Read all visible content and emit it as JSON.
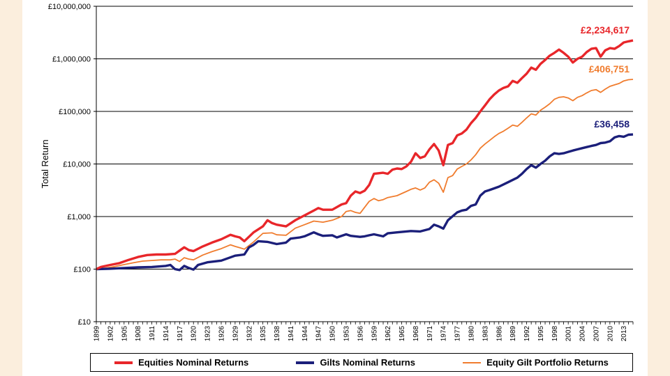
{
  "chart_data": {
    "type": "line",
    "ylabel": "Total Return",
    "xlabel": "",
    "yscale": "log",
    "ylim": [
      10,
      10000000
    ],
    "xlim": [
      1899,
      2015
    ],
    "yticks": [
      {
        "value": 10,
        "label": "£10"
      },
      {
        "value": 100,
        "label": "£100"
      },
      {
        "value": 1000,
        "label": "£1,000"
      },
      {
        "value": 10000,
        "label": "£10,000"
      },
      {
        "value": 100000,
        "label": "£100,000"
      },
      {
        "value": 1000000,
        "label": "£1,000,000"
      },
      {
        "value": 10000000,
        "label": "£10,000,000"
      }
    ],
    "xticks": [
      "1899",
      "1902",
      "1905",
      "1908",
      "1911",
      "1914",
      "1917",
      "1920",
      "1923",
      "1926",
      "1929",
      "1932",
      "1935",
      "1938",
      "1941",
      "1944",
      "1947",
      "1950",
      "1953",
      "1956",
      "1959",
      "1962",
      "1965",
      "1968",
      "1971",
      "1974",
      "1977",
      "1980",
      "1983",
      "1986",
      "1989",
      "1992",
      "1995",
      "1998",
      "2001",
      "2004",
      "2007",
      "2010",
      "2013"
    ],
    "grid": "horizontal",
    "legend_position": "bottom",
    "series": [
      {
        "name": "Equities Nominal Returns",
        "color": "#e8262a",
        "end_label": "£2,234,617",
        "points": [
          [
            1899,
            100
          ],
          [
            1900,
            110
          ],
          [
            1902,
            120
          ],
          [
            1904,
            130
          ],
          [
            1906,
            150
          ],
          [
            1908,
            170
          ],
          [
            1910,
            185
          ],
          [
            1912,
            190
          ],
          [
            1914,
            190
          ],
          [
            1916,
            195
          ],
          [
            1918,
            260
          ],
          [
            1919,
            230
          ],
          [
            1920,
            220
          ],
          [
            1922,
            270
          ],
          [
            1924,
            320
          ],
          [
            1926,
            370
          ],
          [
            1928,
            450
          ],
          [
            1929,
            420
          ],
          [
            1930,
            400
          ],
          [
            1931,
            340
          ],
          [
            1933,
            500
          ],
          [
            1935,
            650
          ],
          [
            1936,
            850
          ],
          [
            1937,
            750
          ],
          [
            1938,
            700
          ],
          [
            1940,
            650
          ],
          [
            1942,
            850
          ],
          [
            1944,
            1050
          ],
          [
            1946,
            1300
          ],
          [
            1947,
            1450
          ],
          [
            1948,
            1350
          ],
          [
            1950,
            1350
          ],
          [
            1952,
            1700
          ],
          [
            1953,
            1800
          ],
          [
            1954,
            2500
          ],
          [
            1955,
            3000
          ],
          [
            1956,
            2800
          ],
          [
            1957,
            3100
          ],
          [
            1958,
            4000
          ],
          [
            1959,
            6500
          ],
          [
            1961,
            6800
          ],
          [
            1962,
            6500
          ],
          [
            1963,
            7800
          ],
          [
            1964,
            8200
          ],
          [
            1965,
            8000
          ],
          [
            1966,
            9000
          ],
          [
            1967,
            11000
          ],
          [
            1968,
            16000
          ],
          [
            1969,
            13000
          ],
          [
            1970,
            14000
          ],
          [
            1971,
            19000
          ],
          [
            1972,
            24000
          ],
          [
            1973,
            18000
          ],
          [
            1974,
            9500
          ],
          [
            1975,
            23000
          ],
          [
            1976,
            25000
          ],
          [
            1977,
            35000
          ],
          [
            1978,
            38000
          ],
          [
            1979,
            45000
          ],
          [
            1980,
            60000
          ],
          [
            1981,
            75000
          ],
          [
            1982,
            100000
          ],
          [
            1983,
            130000
          ],
          [
            1984,
            170000
          ],
          [
            1985,
            210000
          ],
          [
            1986,
            250000
          ],
          [
            1987,
            280000
          ],
          [
            1988,
            300000
          ],
          [
            1989,
            380000
          ],
          [
            1990,
            350000
          ],
          [
            1991,
            430000
          ],
          [
            1992,
            520000
          ],
          [
            1993,
            680000
          ],
          [
            1994,
            620000
          ],
          [
            1995,
            800000
          ],
          [
            1996,
            950000
          ],
          [
            1997,
            1150000
          ],
          [
            1998,
            1300000
          ],
          [
            1999,
            1500000
          ],
          [
            2000,
            1300000
          ],
          [
            2001,
            1100000
          ],
          [
            2002,
            850000
          ],
          [
            2003,
            1000000
          ],
          [
            2004,
            1100000
          ],
          [
            2005,
            1350000
          ],
          [
            2006,
            1550000
          ],
          [
            2007,
            1600000
          ],
          [
            2008,
            1100000
          ],
          [
            2009,
            1450000
          ],
          [
            2010,
            1600000
          ],
          [
            2011,
            1550000
          ],
          [
            2012,
            1750000
          ],
          [
            2013,
            2050000
          ],
          [
            2014,
            2150000
          ],
          [
            2015,
            2234617
          ]
        ]
      },
      {
        "name": "Gilts Nominal Returns",
        "color": "#1b1f7a",
        "end_label": "£36,458",
        "points": [
          [
            1899,
            100
          ],
          [
            1902,
            102
          ],
          [
            1905,
            105
          ],
          [
            1908,
            108
          ],
          [
            1911,
            110
          ],
          [
            1914,
            115
          ],
          [
            1915,
            120
          ],
          [
            1916,
            100
          ],
          [
            1917,
            96
          ],
          [
            1918,
            115
          ],
          [
            1919,
            105
          ],
          [
            1920,
            98
          ],
          [
            1921,
            120
          ],
          [
            1923,
            135
          ],
          [
            1926,
            145
          ],
          [
            1929,
            180
          ],
          [
            1931,
            190
          ],
          [
            1932,
            260
          ],
          [
            1933,
            290
          ],
          [
            1934,
            340
          ],
          [
            1936,
            330
          ],
          [
            1938,
            300
          ],
          [
            1940,
            320
          ],
          [
            1941,
            380
          ],
          [
            1943,
            400
          ],
          [
            1944,
            420
          ],
          [
            1946,
            500
          ],
          [
            1947,
            460
          ],
          [
            1948,
            430
          ],
          [
            1950,
            440
          ],
          [
            1951,
            400
          ],
          [
            1953,
            460
          ],
          [
            1954,
            430
          ],
          [
            1956,
            410
          ],
          [
            1957,
            420
          ],
          [
            1958,
            440
          ],
          [
            1959,
            460
          ],
          [
            1961,
            420
          ],
          [
            1962,
            480
          ],
          [
            1964,
            500
          ],
          [
            1965,
            510
          ],
          [
            1967,
            530
          ],
          [
            1969,
            520
          ],
          [
            1971,
            580
          ],
          [
            1972,
            700
          ],
          [
            1973,
            650
          ],
          [
            1974,
            590
          ],
          [
            1975,
            850
          ],
          [
            1977,
            1200
          ],
          [
            1978,
            1300
          ],
          [
            1979,
            1350
          ],
          [
            1980,
            1600
          ],
          [
            1981,
            1700
          ],
          [
            1982,
            2500
          ],
          [
            1983,
            3000
          ],
          [
            1984,
            3200
          ],
          [
            1986,
            3700
          ],
          [
            1988,
            4500
          ],
          [
            1990,
            5500
          ],
          [
            1991,
            6500
          ],
          [
            1992,
            8000
          ],
          [
            1993,
            9500
          ],
          [
            1994,
            8500
          ],
          [
            1995,
            10000
          ],
          [
            1996,
            11500
          ],
          [
            1997,
            14000
          ],
          [
            1998,
            16000
          ],
          [
            1999,
            15500
          ],
          [
            2000,
            16000
          ],
          [
            2001,
            17000
          ],
          [
            2002,
            18000
          ],
          [
            2003,
            19000
          ],
          [
            2004,
            20000
          ],
          [
            2005,
            21000
          ],
          [
            2006,
            22000
          ],
          [
            2007,
            23000
          ],
          [
            2008,
            25000
          ],
          [
            2009,
            25500
          ],
          [
            2010,
            27000
          ],
          [
            2011,
            32000
          ],
          [
            2012,
            34000
          ],
          [
            2013,
            33000
          ],
          [
            2014,
            36000
          ],
          [
            2015,
            36458
          ]
        ]
      },
      {
        "name": "Equity Gilt Portfolio Returns",
        "color": "#f07c2e",
        "end_label": "£406,751",
        "points": [
          [
            1899,
            100
          ],
          [
            1901,
            105
          ],
          [
            1903,
            112
          ],
          [
            1905,
            122
          ],
          [
            1907,
            132
          ],
          [
            1909,
            142
          ],
          [
            1911,
            146
          ],
          [
            1913,
            150
          ],
          [
            1915,
            150
          ],
          [
            1916,
            155
          ],
          [
            1917,
            140
          ],
          [
            1918,
            165
          ],
          [
            1919,
            155
          ],
          [
            1920,
            150
          ],
          [
            1922,
            185
          ],
          [
            1924,
            215
          ],
          [
            1926,
            245
          ],
          [
            1928,
            290
          ],
          [
            1929,
            270
          ],
          [
            1930,
            255
          ],
          [
            1931,
            240
          ],
          [
            1933,
            330
          ],
          [
            1935,
            480
          ],
          [
            1937,
            490
          ],
          [
            1938,
            450
          ],
          [
            1940,
            440
          ],
          [
            1942,
            600
          ],
          [
            1944,
            700
          ],
          [
            1946,
            820
          ],
          [
            1948,
            780
          ],
          [
            1950,
            850
          ],
          [
            1952,
            1000
          ],
          [
            1953,
            1250
          ],
          [
            1954,
            1300
          ],
          [
            1955,
            1200
          ],
          [
            1956,
            1150
          ],
          [
            1957,
            1500
          ],
          [
            1958,
            1950
          ],
          [
            1959,
            2200
          ],
          [
            1960,
            2000
          ],
          [
            1961,
            2100
          ],
          [
            1962,
            2300
          ],
          [
            1964,
            2500
          ],
          [
            1966,
            3000
          ],
          [
            1967,
            3300
          ],
          [
            1968,
            3500
          ],
          [
            1969,
            3200
          ],
          [
            1970,
            3500
          ],
          [
            1971,
            4500
          ],
          [
            1972,
            5000
          ],
          [
            1973,
            4300
          ],
          [
            1974,
            2900
          ],
          [
            1975,
            5500
          ],
          [
            1976,
            6000
          ],
          [
            1977,
            8000
          ],
          [
            1978,
            9000
          ],
          [
            1979,
            10000
          ],
          [
            1980,
            12000
          ],
          [
            1981,
            15000
          ],
          [
            1982,
            20000
          ],
          [
            1983,
            24000
          ],
          [
            1984,
            28000
          ],
          [
            1985,
            33000
          ],
          [
            1986,
            38000
          ],
          [
            1987,
            42000
          ],
          [
            1988,
            48000
          ],
          [
            1989,
            55000
          ],
          [
            1990,
            52000
          ],
          [
            1991,
            62000
          ],
          [
            1992,
            75000
          ],
          [
            1993,
            90000
          ],
          [
            1994,
            85000
          ],
          [
            1995,
            105000
          ],
          [
            1996,
            120000
          ],
          [
            1997,
            140000
          ],
          [
            1998,
            170000
          ],
          [
            1999,
            185000
          ],
          [
            2000,
            190000
          ],
          [
            2001,
            180000
          ],
          [
            2002,
            160000
          ],
          [
            2003,
            185000
          ],
          [
            2004,
            200000
          ],
          [
            2005,
            225000
          ],
          [
            2006,
            250000
          ],
          [
            2007,
            260000
          ],
          [
            2008,
            230000
          ],
          [
            2009,
            265000
          ],
          [
            2010,
            300000
          ],
          [
            2011,
            320000
          ],
          [
            2012,
            340000
          ],
          [
            2013,
            380000
          ],
          [
            2014,
            400000
          ],
          [
            2015,
            406751
          ]
        ]
      }
    ]
  }
}
